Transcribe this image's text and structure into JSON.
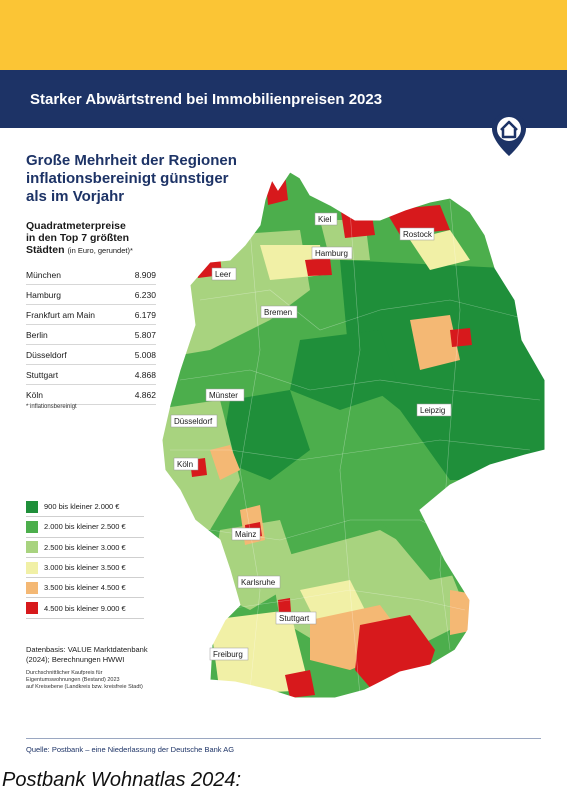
{
  "header": {
    "title": "Starker Abwärtstrend bei  Immobilienpreisen 2023"
  },
  "headline": {
    "line1": "Große Mehrheit der Regionen",
    "line2": "inflationsbereinigt günstiger",
    "line3": "als im Vorjahr"
  },
  "subtitle": {
    "line1": "Quadratmeterpreise",
    "line2": "in den Top 7 größten",
    "line3": "Städten",
    "note": "(in Euro, gerundet)*"
  },
  "prices": [
    {
      "city": "München",
      "value": "8.909"
    },
    {
      "city": "Hamburg",
      "value": "6.230"
    },
    {
      "city": "Frankfurt am Main",
      "value": "6.179"
    },
    {
      "city": "Berlin",
      "value": "5.807"
    },
    {
      "city": "Düsseldorf",
      "value": "5.008"
    },
    {
      "city": "Stuttgart",
      "value": "4.868"
    },
    {
      "city": "Köln",
      "value": "4.862"
    }
  ],
  "footnote": "* inflationsbereinigt",
  "legend": [
    {
      "label": "900 bis kleiner 2.000 €",
      "color": "#1f8f3a"
    },
    {
      "label": "2.000 bis kleiner 2.500 €",
      "color": "#4cae4c"
    },
    {
      "label": "2.500 bis kleiner 3.000 €",
      "color": "#a8d37f"
    },
    {
      "label": "3.000 bis kleiner 3.500 €",
      "color": "#f1f0a6"
    },
    {
      "label": "3.500 bis kleiner 4.500 €",
      "color": "#f4b874"
    },
    {
      "label": "4.500 bis kleiner 9.000 €",
      "color": "#d7191c"
    }
  ],
  "data_source": {
    "line1": "Datenbasis: VALUE Marktdatenbank",
    "line2": "(2024); Berechnungen HWWI"
  },
  "data_note": {
    "line1": "Durchschnittlicher Kaufpreis für",
    "line2": "Eigentumswohnungen (Bestand) 2023",
    "line3": "auf Kreisebene (Landkreis bzw. kreisfreie Stadt)"
  },
  "map": {
    "cities": [
      {
        "name": "Kiel"
      },
      {
        "name": "Rostock"
      },
      {
        "name": "Hamburg"
      },
      {
        "name": "Leer"
      },
      {
        "name": "Bremen"
      },
      {
        "name": "Münster"
      },
      {
        "name": "Düsseldorf"
      },
      {
        "name": "Köln"
      },
      {
        "name": "Leipzig"
      },
      {
        "name": "Mainz"
      },
      {
        "name": "Karlsruhe"
      },
      {
        "name": "Stuttgart"
      },
      {
        "name": "Freiburg"
      }
    ]
  },
  "source": "Quelle: Postbank – eine Niederlassung der Deutsche Bank AG",
  "caption": "Postbank Wohnatlas 2024:"
}
